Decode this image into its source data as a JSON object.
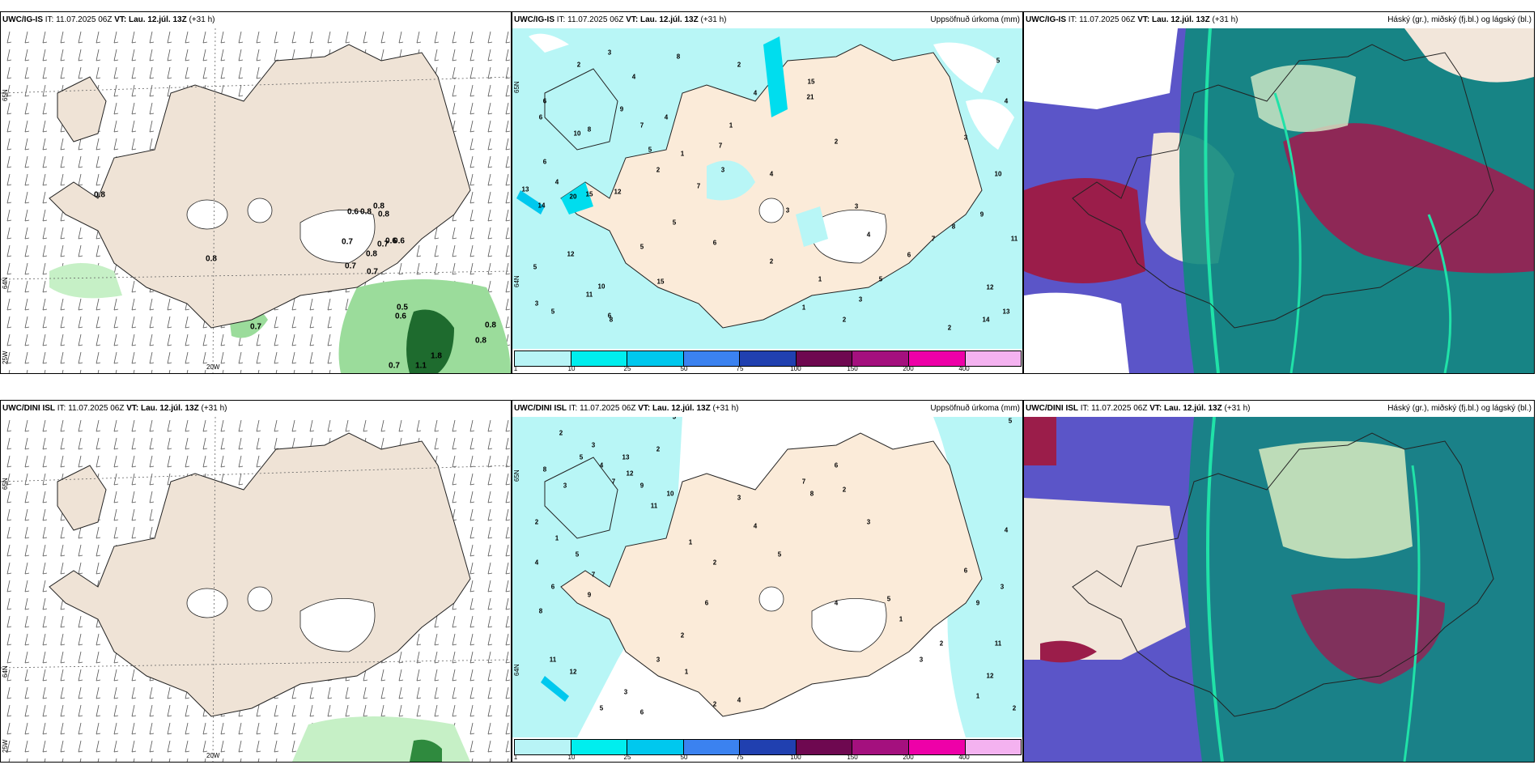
{
  "panels": [
    {
      "model": "UWC/IG-IS",
      "it_label": "IT:",
      "it": "11.07.2025 06Z",
      "vt_label": "VT:",
      "vt": "Lau. 12.júl. 13Z",
      "lead": "(+31 h)",
      "title": "",
      "numbers": [
        "0.8",
        "0.6",
        "0.8",
        "0.8",
        "0.7",
        "0.8",
        "0.7",
        "0.6",
        "0.6",
        "0.8",
        "0.7",
        "0.7",
        "0.5",
        "0.6",
        "0.8",
        "0.8",
        "0.7",
        "0.7",
        "1.1",
        "1.8",
        "0.8"
      ],
      "axis": {
        "lat_top": "65N",
        "lat_bottom": "64N",
        "lon_left": "25W",
        "lon_bottom": "20W"
      }
    },
    {
      "model": "UWC/IG-IS",
      "it_label": "IT:",
      "it": "11.07.2025 06Z",
      "vt_label": "VT:",
      "vt": "Lau. 12.júl. 13Z",
      "lead": "(+31 h)",
      "title": "Uppsöfnuð úrkoma (mm)",
      "numbers": [
        "3",
        "2",
        "8",
        "6",
        "4",
        "9",
        "7",
        "5",
        "10",
        "8",
        "6",
        "5",
        "4",
        "3",
        "2",
        "1",
        "13",
        "14",
        "20",
        "15",
        "12",
        "7",
        "5",
        "5",
        "6",
        "4",
        "7",
        "4",
        "3",
        "2",
        "1",
        "12",
        "11",
        "10",
        "8",
        "15",
        "6",
        "4",
        "3",
        "2",
        "1",
        "2",
        "3",
        "4",
        "5",
        "6",
        "7",
        "8",
        "9",
        "10",
        "11",
        "12",
        "13",
        "14",
        "15",
        "21",
        "2",
        "3",
        "1",
        "2",
        "3",
        "4",
        "5",
        "6"
      ],
      "axis": {
        "lat_top": "65N",
        "lat_bottom": "64N"
      }
    },
    {
      "model": "UWC/IG-IS",
      "it_label": "IT:",
      "it": "11.07.2025 06Z",
      "vt_label": "VT:",
      "vt": "Lau. 12.júl. 13Z",
      "lead": "(+31 h)",
      "title": "Háský (gr.), miðský (fj.bl.) og lágský (bl.)"
    },
    {
      "model": "UWC/DINI ISL",
      "it_label": "IT:",
      "it": "11.07.2025 06Z",
      "vt_label": "VT:",
      "vt": "Lau. 12.júl. 13Z",
      "lead": "(+31 h)",
      "title": "",
      "axis": {
        "lat_top": "65N",
        "lat_bottom": "64N",
        "lon_left": "25W",
        "lon_bottom": "20W"
      }
    },
    {
      "model": "UWC/DINI ISL",
      "it_label": "IT:",
      "it": "11.07.2025 06Z",
      "vt_label": "VT:",
      "vt": "Lau. 12.júl. 13Z",
      "lead": "(+31 h)",
      "title": "Uppsöfnuð úrkoma (mm)",
      "numbers": [
        "2",
        "3",
        "5",
        "4",
        "6",
        "8",
        "7",
        "9",
        "12",
        "11",
        "10",
        "13",
        "3",
        "2",
        "1",
        "4",
        "5",
        "6",
        "7",
        "8",
        "9",
        "11",
        "12",
        "2",
        "3",
        "1",
        "2",
        "3",
        "4",
        "5",
        "6",
        "2",
        "3",
        "1",
        "2",
        "3",
        "4",
        "5",
        "6",
        "7",
        "8",
        "2",
        "3",
        "4",
        "5",
        "1",
        "2",
        "3",
        "6",
        "9",
        "11",
        "12",
        "2",
        "1",
        "3",
        "4",
        "5"
      ],
      "axis": {
        "lat_top": "65N",
        "lat_bottom": "64N"
      }
    },
    {
      "model": "UWC/DINI ISL",
      "it_label": "IT:",
      "it": "11.07.2025 06Z",
      "vt_label": "VT:",
      "vt": "Lau. 12.júl. 13Z",
      "lead": "(+31 h)",
      "title": "Háský (gr.), miðský (fj.bl.) og lágský (bl.)"
    }
  ],
  "legend": {
    "ticks": [
      "1",
      "10",
      "25",
      "50",
      "75",
      "100",
      "150",
      "200",
      "400"
    ],
    "colors": [
      "#b8f4f6",
      "#00eeee",
      "#00c8ee",
      "#3b82f0",
      "#2040b0",
      "#6e0850",
      "#a4107e",
      "#ee00a8",
      "#f4b2f0"
    ]
  },
  "colors": {
    "land": "#efe3d6",
    "sea": "#ffffff",
    "precip_light": "#b8f6f6",
    "green_light": "#c6f0c6",
    "green_dark": "#1e6b2e",
    "cloud_high": "#1fd19a",
    "cloud_mid": "#5b55c8",
    "cloud_low": "#9b1d4a"
  }
}
